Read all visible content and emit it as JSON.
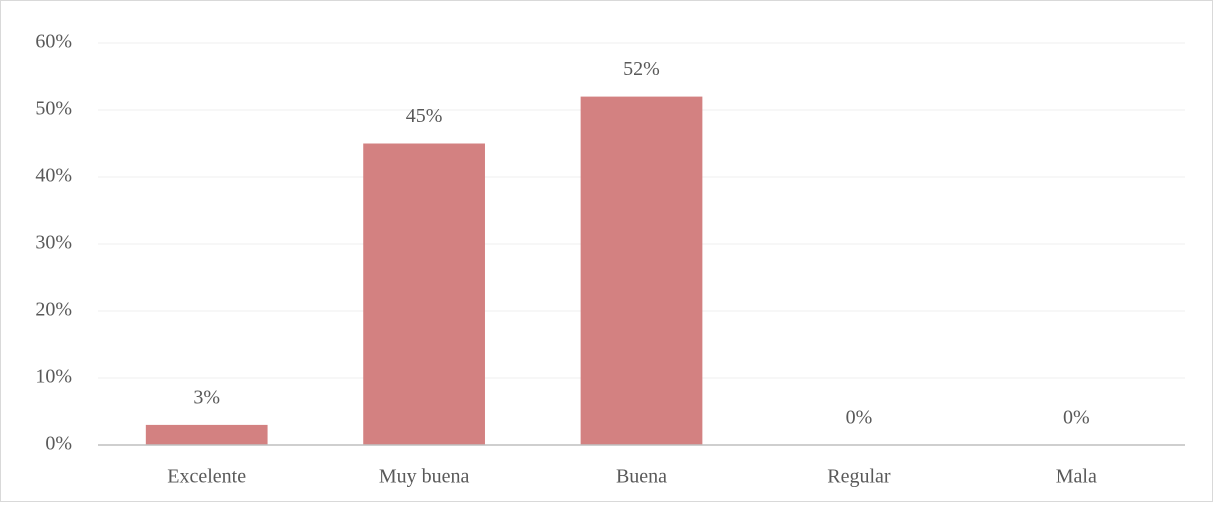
{
  "chart_data": {
    "type": "bar",
    "categories": [
      "Excelente",
      "Muy buena",
      "Buena",
      "Regular",
      "Mala"
    ],
    "values": [
      3,
      45,
      52,
      0,
      0
    ],
    "value_labels": [
      "3%",
      "45%",
      "52%",
      "0%",
      "0%"
    ],
    "color": "#d38181",
    "ylim": [
      0,
      60
    ],
    "yticks": [
      {
        "value": 0,
        "label": "0%"
      },
      {
        "value": 10,
        "label": "10%"
      },
      {
        "value": 20,
        "label": "20%"
      },
      {
        "value": 30,
        "label": "30%"
      },
      {
        "value": 40,
        "label": "40%"
      },
      {
        "value": 50,
        "label": "50%"
      },
      {
        "value": 60,
        "label": "60%"
      }
    ],
    "grid": true
  }
}
